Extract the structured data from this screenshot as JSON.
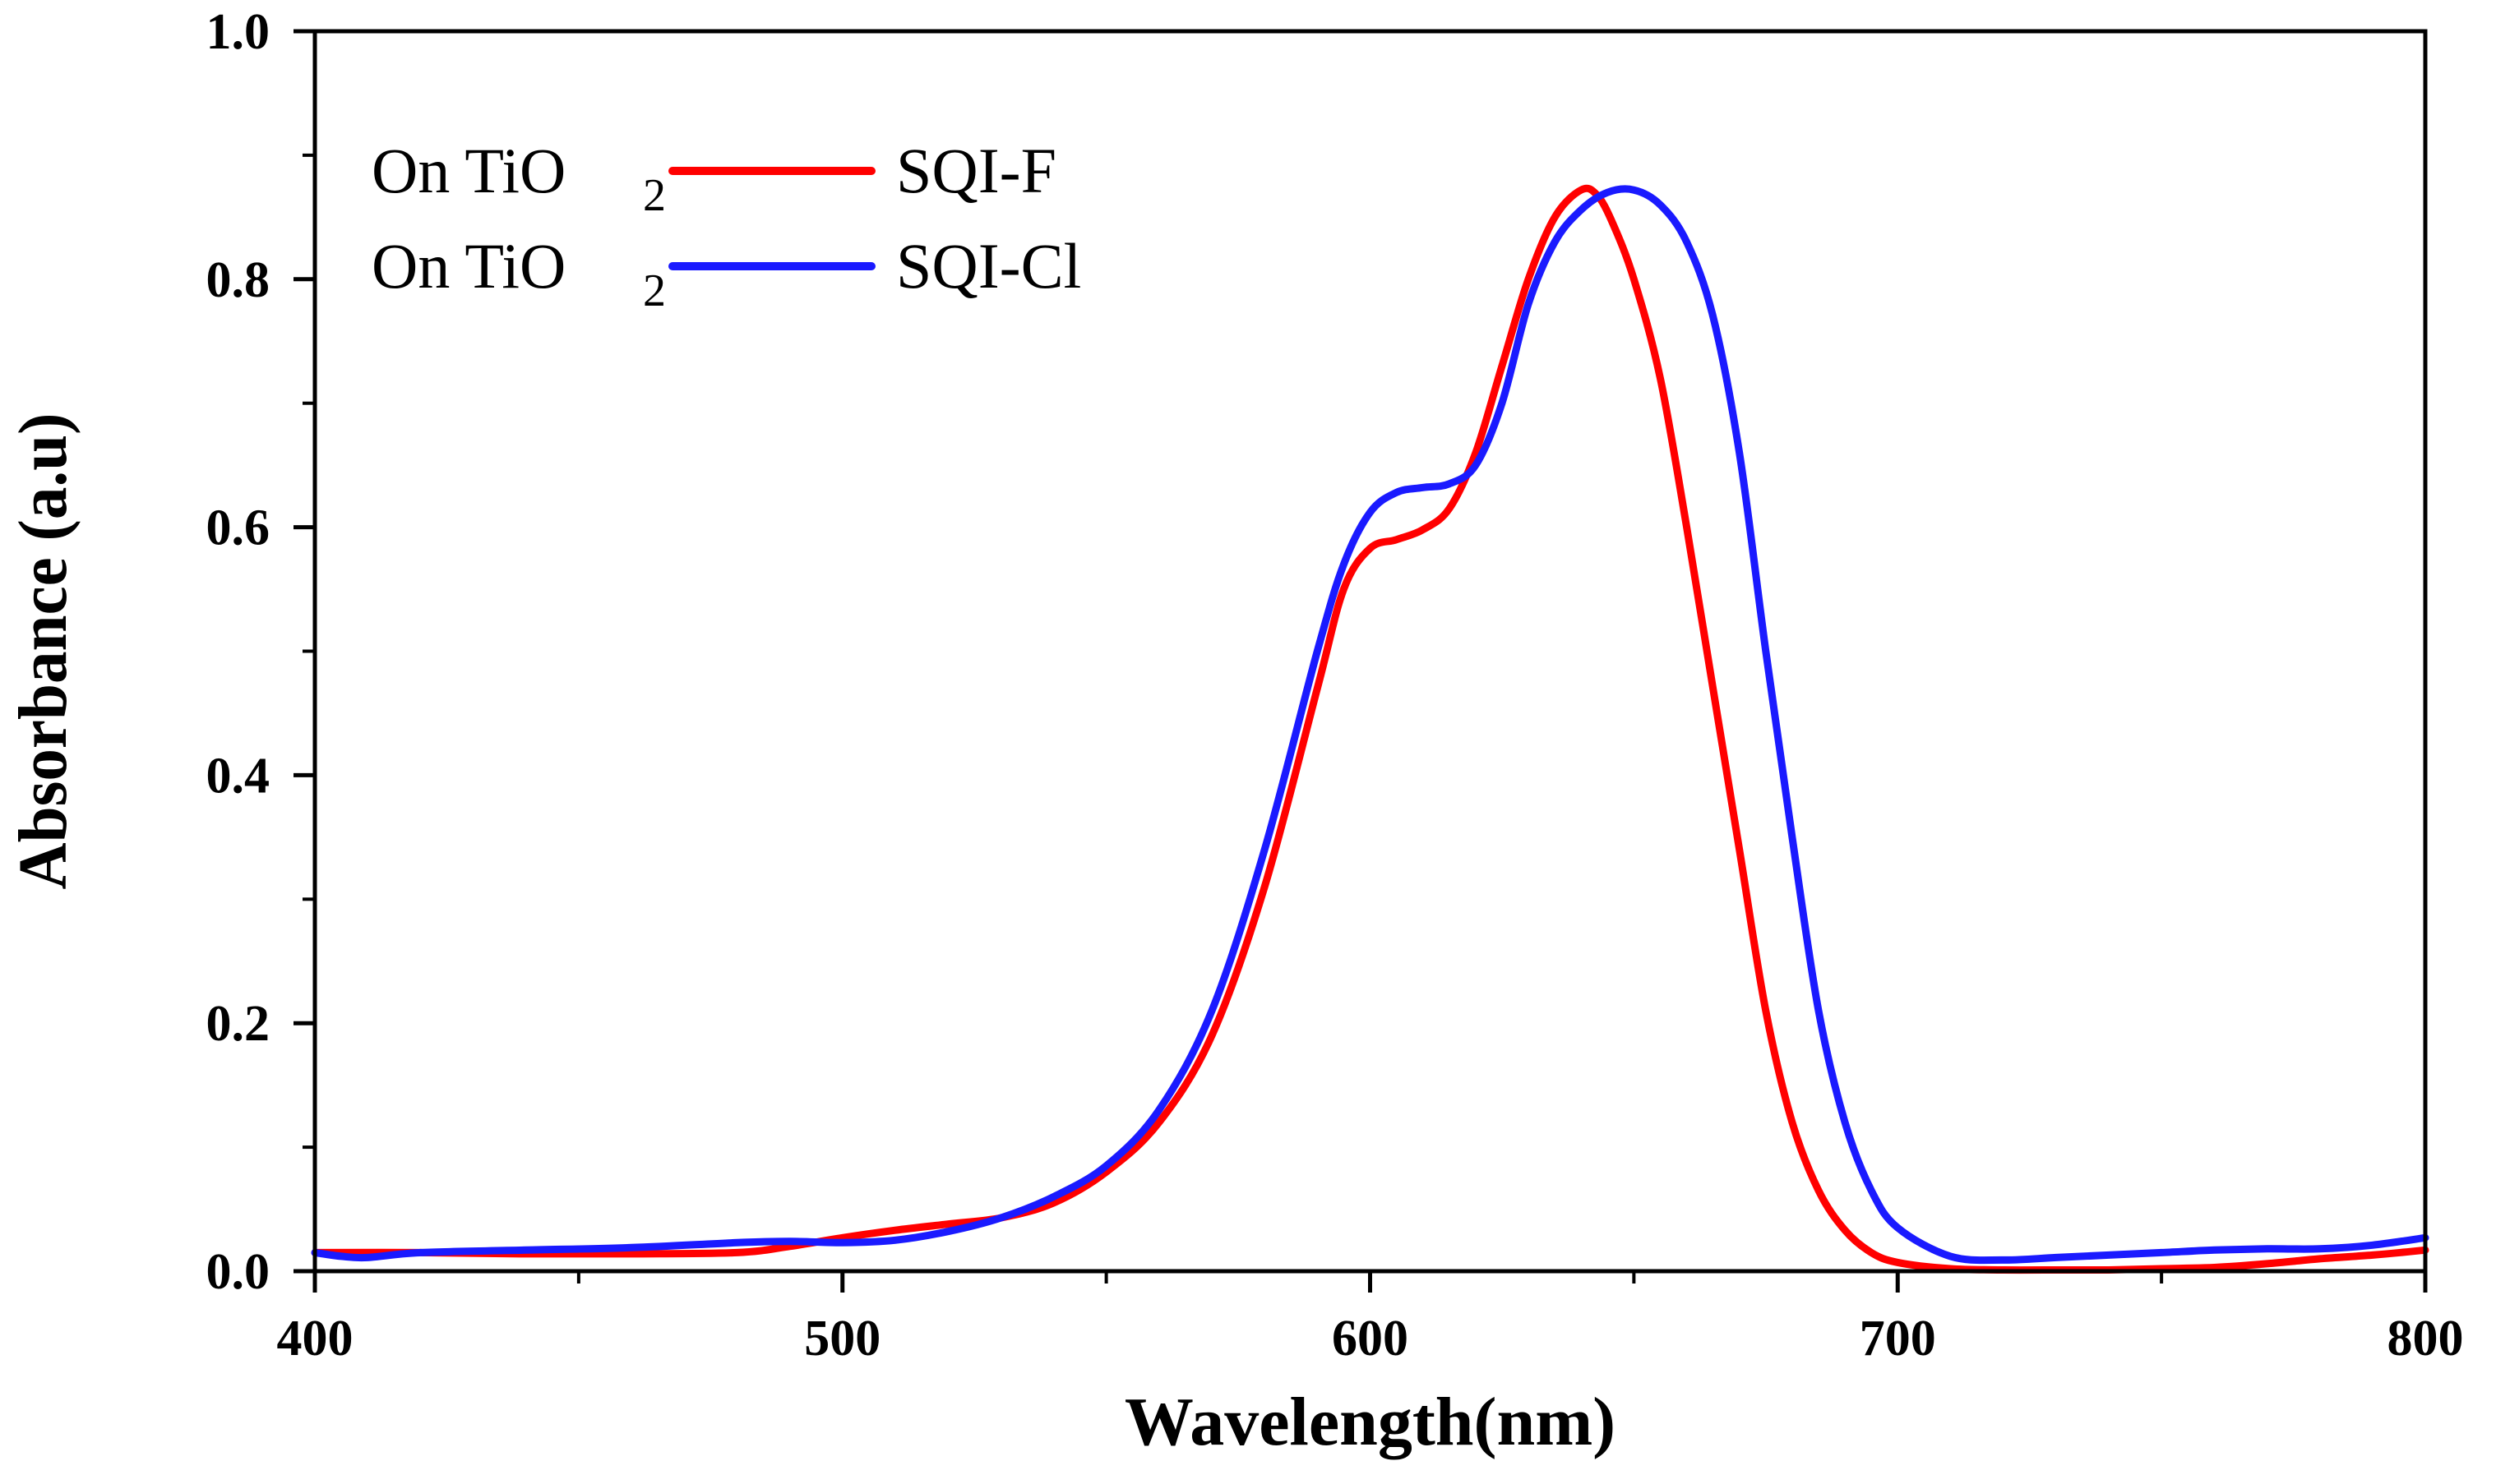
{
  "chart_data": {
    "type": "line",
    "xlabel": "Wavelength(nm)",
    "ylabel": "Absorbance (a.u)",
    "xlim": [
      400,
      800
    ],
    "ylim": [
      0.0,
      1.0
    ],
    "xticks": [
      400,
      500,
      600,
      700,
      800
    ],
    "xtick_labels": [
      "400",
      "500",
      "600",
      "700",
      "800"
    ],
    "yticks": [
      0.0,
      0.2,
      0.4,
      0.6,
      0.8,
      1.0
    ],
    "ytick_labels": [
      "0.0",
      "0.2",
      "0.4",
      "0.6",
      "0.8",
      "1.0"
    ],
    "grid": false,
    "legend_position": "top-left",
    "series": [
      {
        "name": "SQI-F",
        "legend_prefix": "On TiO",
        "legend_subscript": "2",
        "color": "#ff0000",
        "x": [
          400,
          420,
          440,
          460,
          480,
          490,
          500,
          510,
          520,
          530,
          540,
          550,
          560,
          570,
          580,
          590,
          595,
          600,
          605,
          610,
          615,
          620,
          625,
          630,
          635,
          640,
          643,
          646,
          650,
          655,
          660,
          665,
          670,
          675,
          680,
          685,
          690,
          695,
          700,
          710,
          720,
          730,
          740,
          750,
          760,
          770,
          780,
          790,
          800
        ],
        "y": [
          0.015,
          0.015,
          0.014,
          0.014,
          0.015,
          0.02,
          0.027,
          0.033,
          0.038,
          0.043,
          0.055,
          0.08,
          0.12,
          0.19,
          0.31,
          0.47,
          0.55,
          0.583,
          0.59,
          0.598,
          0.615,
          0.66,
          0.73,
          0.8,
          0.85,
          0.872,
          0.868,
          0.845,
          0.8,
          0.72,
          0.6,
          0.47,
          0.34,
          0.21,
          0.12,
          0.065,
          0.033,
          0.015,
          0.007,
          0.002,
          0.001,
          0.001,
          0.001,
          0.002,
          0.003,
          0.006,
          0.01,
          0.013,
          0.017
        ]
      },
      {
        "name": "SQI-Cl",
        "legend_prefix": "On TiO",
        "legend_subscript": "2",
        "color": "#1a1aff",
        "x": [
          400,
          405,
          410,
          420,
          440,
          460,
          480,
          490,
          500,
          510,
          520,
          530,
          540,
          550,
          560,
          570,
          580,
          590,
          595,
          600,
          605,
          610,
          615,
          620,
          625,
          630,
          635,
          640,
          645,
          650,
          655,
          660,
          665,
          670,
          675,
          680,
          685,
          690,
          695,
          700,
          710,
          720,
          730,
          740,
          750,
          760,
          770,
          780,
          790,
          800
        ],
        "y": [
          0.015,
          0.012,
          0.011,
          0.015,
          0.017,
          0.019,
          0.023,
          0.024,
          0.023,
          0.025,
          0.032,
          0.043,
          0.06,
          0.085,
          0.13,
          0.21,
          0.34,
          0.5,
          0.57,
          0.612,
          0.628,
          0.632,
          0.635,
          0.65,
          0.7,
          0.78,
          0.83,
          0.856,
          0.87,
          0.872,
          0.86,
          0.83,
          0.77,
          0.66,
          0.5,
          0.35,
          0.21,
          0.12,
          0.065,
          0.035,
          0.012,
          0.009,
          0.011,
          0.013,
          0.015,
          0.017,
          0.018,
          0.018,
          0.021,
          0.027
        ]
      }
    ]
  }
}
